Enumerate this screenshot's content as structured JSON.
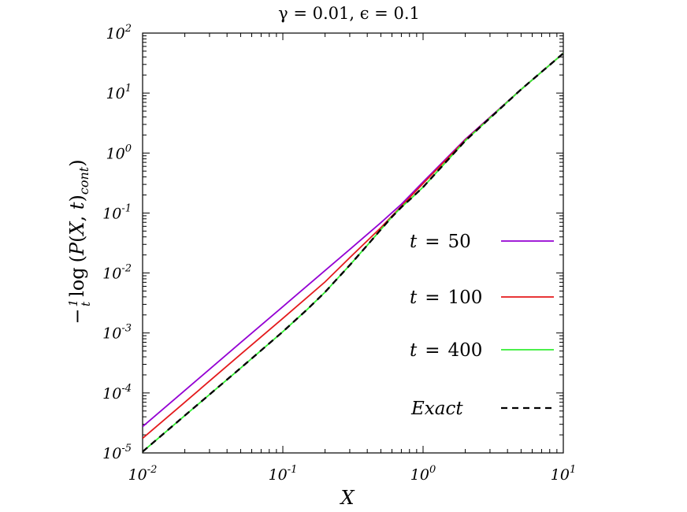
{
  "chart_data": {
    "type": "line",
    "title": "γ  =  0.01,  ϵ  =  0.1",
    "xlabel": "X",
    "ylabel": "−(1/t) log (P(X, t)cont)",
    "xscale": "log",
    "yscale": "log",
    "xlim": [
      0.01,
      10
    ],
    "ylim": [
      1e-05,
      100
    ],
    "x_ticks": [
      {
        "base": "10",
        "exp": "-2"
      },
      {
        "base": "10",
        "exp": "-1"
      },
      {
        "base": "10",
        "exp": "0"
      },
      {
        "base": "10",
        "exp": "1"
      }
    ],
    "y_ticks": [
      {
        "base": "10",
        "exp": "-5"
      },
      {
        "base": "10",
        "exp": "-4"
      },
      {
        "base": "10",
        "exp": "-3"
      },
      {
        "base": "10",
        "exp": "-2"
      },
      {
        "base": "10",
        "exp": "-1"
      },
      {
        "base": "10",
        "exp": "0"
      },
      {
        "base": "10",
        "exp": "1"
      },
      {
        "base": "10",
        "exp": "2"
      }
    ],
    "legend_position": "right",
    "grid": false,
    "series": [
      {
        "name": "t = 50",
        "legend": {
          "var": "t",
          "eq": "=",
          "num": "50"
        },
        "color": "#9400d3",
        "dash": "solid",
        "x": [
          0.01,
          0.02,
          0.05,
          0.1,
          0.2,
          0.3,
          0.5,
          0.7,
          1.0,
          2.0,
          5.0,
          10.0
        ],
        "y": [
          2.75e-05,
          0.00011,
          0.00069,
          0.00275,
          0.011,
          0.0247,
          0.069,
          0.14,
          0.33,
          1.7,
          11.5,
          46
        ]
      },
      {
        "name": "t = 100",
        "legend": {
          "var": "t",
          "eq": "=",
          "num": "100"
        },
        "color": "#e41a1c",
        "dash": "solid",
        "x": [
          0.01,
          0.02,
          0.05,
          0.1,
          0.2,
          0.3,
          0.5,
          0.7,
          1.0,
          2.0,
          5.0,
          10.0
        ],
        "y": [
          1.75e-05,
          7e-05,
          0.00044,
          0.00175,
          0.0071,
          0.018,
          0.057,
          0.13,
          0.31,
          1.65,
          11.5,
          46
        ]
      },
      {
        "name": "t = 400",
        "legend": {
          "var": "t",
          "eq": "=",
          "num": "400"
        },
        "color": "#33ee33",
        "dash": "solid",
        "x": [
          0.01,
          0.02,
          0.05,
          0.1,
          0.15,
          0.2,
          0.25,
          0.3,
          0.4,
          0.5,
          0.6,
          0.7,
          0.8,
          1.0,
          2.0,
          5.0,
          10.0
        ],
        "y": [
          1.05e-05,
          4.2e-05,
          0.00026,
          0.00105,
          0.0025,
          0.0048,
          0.0085,
          0.0135,
          0.029,
          0.053,
          0.086,
          0.125,
          0.165,
          0.27,
          1.6,
          11.5,
          46
        ]
      },
      {
        "name": "Exact",
        "legend": {
          "var": "Exact",
          "eq": "",
          "num": ""
        },
        "color": "#000000",
        "dash": "dashed",
        "x": [
          0.01,
          0.02,
          0.05,
          0.1,
          0.15,
          0.2,
          0.25,
          0.3,
          0.4,
          0.5,
          0.6,
          0.7,
          0.8,
          1.0,
          2.0,
          5.0,
          10.0
        ],
        "y": [
          1.05e-05,
          4.2e-05,
          0.00026,
          0.00105,
          0.0025,
          0.0048,
          0.0085,
          0.0135,
          0.029,
          0.053,
          0.086,
          0.125,
          0.165,
          0.27,
          1.6,
          11.5,
          46
        ]
      }
    ]
  }
}
